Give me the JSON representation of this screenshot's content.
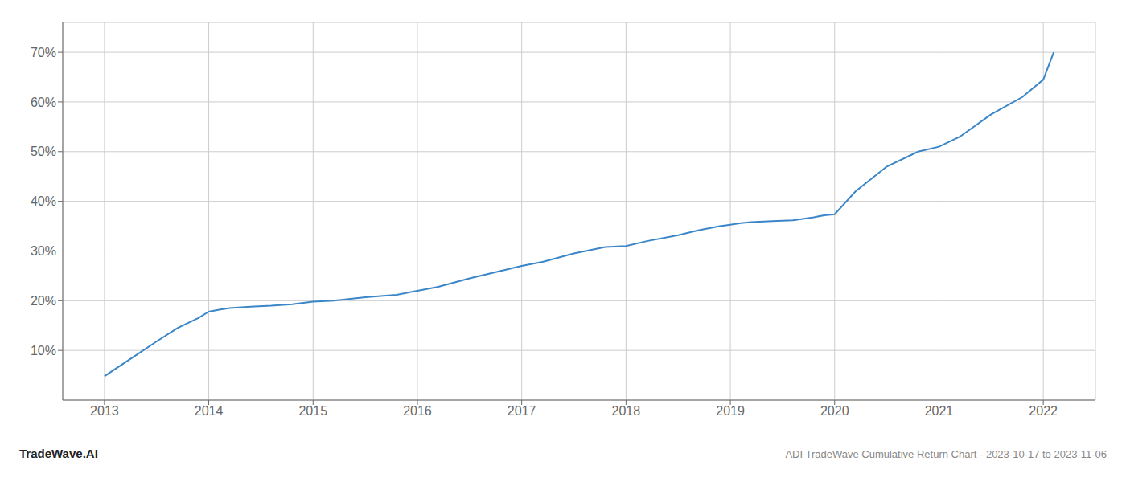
{
  "chart_data": {
    "type": "line",
    "title": "ADI TradeWave Cumulative Return Chart - 2023-10-17 to 2023-11-06",
    "annotations": [
      "TradeWave.AI"
    ],
    "color": "#3a86c8",
    "grid": true,
    "x": [
      2013.0,
      2013.1,
      2013.3,
      2013.5,
      2013.7,
      2013.9,
      2014.0,
      2014.1,
      2014.2,
      2014.4,
      2014.6,
      2014.8,
      2015.0,
      2015.2,
      2015.5,
      2015.8,
      2016.0,
      2016.2,
      2016.5,
      2016.8,
      2017.0,
      2017.2,
      2017.5,
      2017.8,
      2018.0,
      2018.2,
      2018.5,
      2018.7,
      2018.9,
      2019.0,
      2019.1,
      2019.2,
      2019.4,
      2019.6,
      2019.8,
      2019.9,
      2020.0,
      2020.2,
      2020.5,
      2020.8,
      2021.0,
      2021.2,
      2021.5,
      2021.8,
      2022.0,
      2022.1
    ],
    "values": [
      0.048,
      0.062,
      0.09,
      0.118,
      0.145,
      0.165,
      0.178,
      0.182,
      0.185,
      0.188,
      0.19,
      0.193,
      0.198,
      0.2,
      0.207,
      0.212,
      0.22,
      0.228,
      0.245,
      0.26,
      0.27,
      0.278,
      0.295,
      0.308,
      0.31,
      0.32,
      0.332,
      0.342,
      0.35,
      0.353,
      0.356,
      0.358,
      0.36,
      0.362,
      0.368,
      0.372,
      0.374,
      0.42,
      0.47,
      0.5,
      0.51,
      0.53,
      0.575,
      0.61,
      0.645,
      0.7
    ],
    "xlim": [
      2012.6,
      2022.5
    ],
    "ylim": [
      0.0,
      0.76
    ],
    "xticks": [
      2013,
      2014,
      2015,
      2016,
      2017,
      2018,
      2019,
      2020,
      2021,
      2022
    ],
    "yticks": [
      {
        "value": 0.1,
        "label": "10%"
      },
      {
        "value": 0.2,
        "label": "20%"
      },
      {
        "value": 0.3,
        "label": "30%"
      },
      {
        "value": 0.4,
        "label": "40%"
      },
      {
        "value": 0.5,
        "label": "50%"
      },
      {
        "value": 0.6,
        "label": "60%"
      },
      {
        "value": 0.7,
        "label": "70%"
      }
    ]
  }
}
